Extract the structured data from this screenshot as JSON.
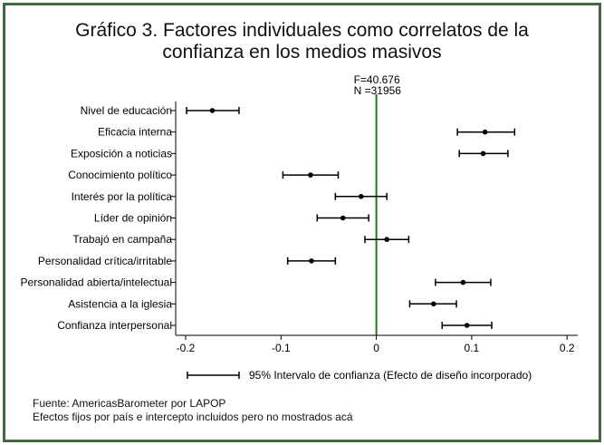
{
  "title_lines": [
    "Gráfico 3. Factores individuales como correlatos de la",
    "confianza en los medios masivos"
  ],
  "colors": {
    "frame": "#3e6b3e",
    "zero_line": "#1a7a1a",
    "marks": "#000000"
  },
  "chart_data": {
    "type": "scatter",
    "style": "coefficient plot with 95% confidence intervals",
    "stat_lines": [
      "F=40.676",
      "N =31956"
    ],
    "categories": [
      "Nivel de educación",
      "Eficacia interna",
      "Exposición a noticias",
      "Conocimiento político",
      "Interés por la política",
      "Líder de opinión",
      "Trabajó en campaña",
      "Personalidad crítica/irritable",
      "Personalidad abierta/intelectual",
      "Asistencia a la iglesia",
      "Confianza interpersonal"
    ],
    "estimates": [
      -0.172,
      0.114,
      0.112,
      -0.069,
      -0.016,
      -0.035,
      0.011,
      -0.068,
      0.091,
      0.06,
      0.095
    ],
    "ci_low": [
      -0.199,
      0.085,
      0.087,
      -0.098,
      -0.043,
      -0.062,
      -0.012,
      -0.093,
      0.062,
      0.035,
      0.069
    ],
    "ci_high": [
      -0.144,
      0.145,
      0.138,
      -0.04,
      0.011,
      -0.008,
      0.034,
      -0.043,
      0.12,
      0.084,
      0.121
    ],
    "xlim": [
      -0.21,
      0.21
    ],
    "xticks": [
      -0.2,
      -0.1,
      0,
      0.1,
      0.2
    ],
    "xtick_labels": [
      "-0.2",
      "-0.1",
      "0",
      "0.1",
      "0.2"
    ],
    "reference_line_x": 0,
    "legend": {
      "label": "95% Intervalo de confianza (Efecto de diseño incorporado)",
      "placement": "bottom"
    },
    "grid": false
  },
  "footnotes": [
    "Fuente: AmericasBarometer por LAPOP",
    "Efectos fijos por país e intercepto incluidos pero no mostrados acá"
  ]
}
